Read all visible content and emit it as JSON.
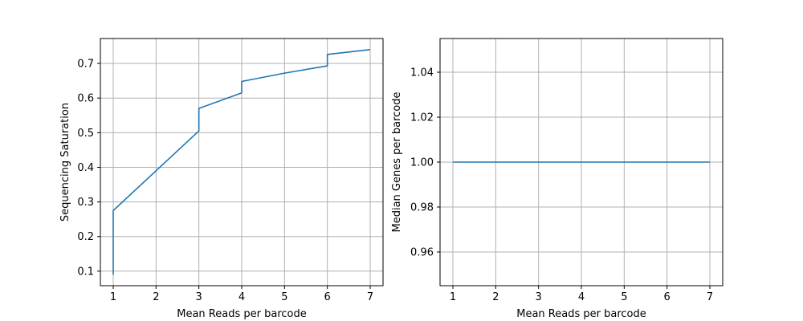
{
  "chart_data": [
    {
      "type": "line",
      "xlabel": "Mean Reads per barcode",
      "ylabel": "Sequencing Saturation",
      "xlim": [
        0.7,
        7.3
      ],
      "ylim": [
        0.058,
        0.772
      ],
      "xticks": [
        1,
        2,
        3,
        4,
        5,
        6,
        7
      ],
      "yticks": [
        0.1,
        0.2,
        0.3,
        0.4,
        0.5,
        0.6,
        0.7
      ],
      "grid": true,
      "color": "#1f77b4",
      "series": [
        {
          "x": [
            1,
            1,
            3,
            3,
            4,
            4,
            5,
            6,
            6,
            7
          ],
          "values": [
            0.09,
            0.275,
            0.505,
            0.57,
            0.615,
            0.648,
            0.672,
            0.693,
            0.726,
            0.74
          ]
        }
      ]
    },
    {
      "type": "line",
      "xlabel": "Mean Reads per barcode",
      "ylabel": "Median Genes per barcode",
      "xlim": [
        0.7,
        7.3
      ],
      "ylim": [
        0.945,
        1.055
      ],
      "xticks": [
        1,
        2,
        3,
        4,
        5,
        6,
        7
      ],
      "yticks": [
        0.96,
        0.98,
        1.0,
        1.02,
        1.04
      ],
      "grid": true,
      "color": "#1f77b4",
      "series": [
        {
          "x": [
            1,
            7
          ],
          "values": [
            1.0,
            1.0
          ]
        }
      ]
    }
  ]
}
